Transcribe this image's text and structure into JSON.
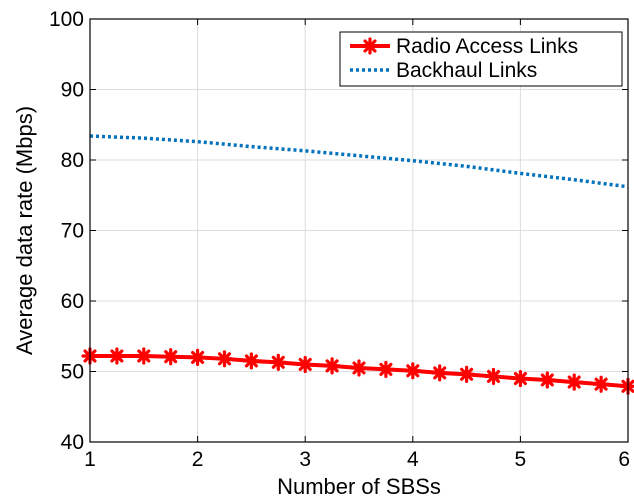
{
  "chart_data": {
    "type": "line",
    "title": "",
    "xlabel": "Number of SBSs",
    "ylabel": "Average data rate (Mbps)",
    "xlim": [
      1,
      6
    ],
    "ylim": [
      40,
      100
    ],
    "xticks": [
      1,
      2,
      3,
      4,
      5,
      6
    ],
    "yticks": [
      40,
      50,
      60,
      70,
      80,
      90,
      100
    ],
    "x_tick_labels": [
      "1",
      "2",
      "3",
      "4",
      "5",
      "6"
    ],
    "y_tick_labels": [
      "40",
      "50",
      "60",
      "70",
      "80",
      "90",
      "100"
    ],
    "grid": true,
    "legend_position": "top-right",
    "series": [
      {
        "name": "Radio Access Links",
        "color": "#ff0000",
        "line_style": "solid",
        "marker": "asterisk",
        "x": [
          1.0,
          1.25,
          1.5,
          1.75,
          2.0,
          2.25,
          2.5,
          2.75,
          3.0,
          3.25,
          3.5,
          3.75,
          4.0,
          4.25,
          4.5,
          4.75,
          5.0,
          5.25,
          5.5,
          5.75,
          6.0
        ],
        "y": [
          52.2,
          52.2,
          52.2,
          52.1,
          52.0,
          51.8,
          51.5,
          51.3,
          51.0,
          50.8,
          50.5,
          50.3,
          50.1,
          49.8,
          49.6,
          49.3,
          49.0,
          48.8,
          48.5,
          48.2,
          47.9
        ]
      },
      {
        "name": "Backhaul Links",
        "color": "#0072bd",
        "line_style": "dotted",
        "marker": "none",
        "x": [
          1.0,
          1.5,
          2.0,
          2.5,
          3.0,
          3.5,
          4.0,
          4.5,
          5.0,
          5.5,
          6.0
        ],
        "y": [
          83.4,
          83.1,
          82.6,
          81.9,
          81.3,
          80.6,
          79.9,
          79.1,
          78.1,
          77.2,
          76.2
        ]
      }
    ]
  }
}
